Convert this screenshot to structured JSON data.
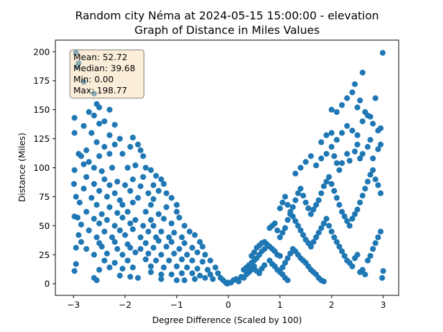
{
  "chart_data": {
    "type": "scatter",
    "title": "Random city Néma at 2024-05-15 15:00:00  - elevation",
    "subtitle": "Graph of Distance in Miles Values",
    "xlabel": "Degree Difference (Scaled by 100)",
    "ylabel": "Distance (Miles)",
    "xlim": [
      -3.35,
      3.3
    ],
    "ylim": [
      -10,
      210
    ],
    "xticks": [
      "−3",
      "−2",
      "−1",
      "0",
      "1",
      "2",
      "3"
    ],
    "xtick_values": [
      -3,
      -2,
      -1,
      0,
      1,
      2,
      3
    ],
    "yticks": [
      "0",
      "25",
      "50",
      "75",
      "100",
      "125",
      "150",
      "175",
      "200"
    ],
    "ytick_values": [
      0,
      25,
      50,
      75,
      100,
      125,
      150,
      175,
      200
    ],
    "grid": false,
    "marker_color": "#1f77b4",
    "stats_box": {
      "mean": "Mean: 52.72",
      "median": "Median: 39.68",
      "min": "Min: 0.00",
      "max": "Max: 198.77",
      "background": "#f5deb3",
      "placement": "top-left"
    },
    "points": [
      [
        -2.95,
        199
      ],
      [
        -2.9,
        190
      ],
      [
        -2.93,
        187
      ],
      [
        -2.8,
        174
      ],
      [
        -2.6,
        164
      ],
      [
        -2.55,
        155
      ],
      [
        -2.5,
        152
      ],
      [
        -2.3,
        150
      ],
      [
        -2.7,
        148
      ],
      [
        -2.6,
        145
      ],
      [
        -2.98,
        143
      ],
      [
        -2.4,
        140
      ],
      [
        -2.5,
        138
      ],
      [
        -2.8,
        136
      ],
      [
        -2.2,
        137
      ],
      [
        -2.98,
        130
      ],
      [
        -2.65,
        130
      ],
      [
        -2.3,
        128
      ],
      [
        -2.1,
        125
      ],
      [
        -1.85,
        126
      ],
      [
        -2.55,
        122
      ],
      [
        -2.4,
        118
      ],
      [
        -2.2,
        120
      ],
      [
        -1.9,
        118
      ],
      [
        -1.75,
        120
      ],
      [
        -1.7,
        115
      ],
      [
        -2.9,
        112
      ],
      [
        -2.75,
        115
      ],
      [
        -2.85,
        110
      ],
      [
        -2.5,
        110
      ],
      [
        -2.3,
        112
      ],
      [
        -2.05,
        112
      ],
      [
        -1.65,
        110
      ],
      [
        -2.7,
        105
      ],
      [
        -2.8,
        103
      ],
      [
        -2.6,
        100
      ],
      [
        -2.98,
        98
      ],
      [
        -2.45,
        97
      ],
      [
        -2.25,
        100
      ],
      [
        -1.95,
        100
      ],
      [
        -1.8,
        102
      ],
      [
        -1.6,
        100
      ],
      [
        -1.5,
        98
      ],
      [
        -2.75,
        92
      ],
      [
        -2.4,
        90
      ],
      [
        -2.15,
        88
      ],
      [
        -1.85,
        90
      ],
      [
        -1.65,
        92
      ],
      [
        -1.4,
        93
      ],
      [
        -1.3,
        90
      ],
      [
        -2.99,
        86
      ],
      [
        -2.6,
        86
      ],
      [
        -2.3,
        85
      ],
      [
        -2.0,
        85
      ],
      [
        -1.7,
        84
      ],
      [
        -1.45,
        85
      ],
      [
        -1.25,
        86
      ],
      [
        -2.8,
        82
      ],
      [
        -2.5,
        80
      ],
      [
        -2.2,
        78
      ],
      [
        -1.9,
        80
      ],
      [
        -1.55,
        78
      ],
      [
        -1.35,
        80
      ],
      [
        -1.2,
        78
      ],
      [
        -2.95,
        75
      ],
      [
        -2.65,
        74
      ],
      [
        -2.35,
        75
      ],
      [
        -2.1,
        72
      ],
      [
        -1.75,
        74
      ],
      [
        -1.45,
        73
      ],
      [
        -1.1,
        74
      ],
      [
        -2.88,
        70
      ],
      [
        -2.55,
        68
      ],
      [
        -2.3,
        66
      ],
      [
        -2.05,
        68
      ],
      [
        -1.85,
        70
      ],
      [
        -1.5,
        68
      ],
      [
        -1.2,
        66
      ],
      [
        -1.0,
        68
      ],
      [
        -2.75,
        62
      ],
      [
        -2.45,
        60
      ],
      [
        -2.15,
        61
      ],
      [
        -1.95,
        62
      ],
      [
        -1.6,
        62
      ],
      [
        -1.35,
        60
      ],
      [
        -1.0,
        62
      ],
      [
        -2.98,
        58
      ],
      [
        -2.92,
        57
      ],
      [
        -2.6,
        56
      ],
      [
        -2.35,
        55
      ],
      [
        -2.05,
        57
      ],
      [
        -1.8,
        55
      ],
      [
        -1.5,
        55
      ],
      [
        -1.25,
        56
      ],
      [
        -0.95,
        57
      ],
      [
        -2.85,
        51
      ],
      [
        -2.5,
        52
      ],
      [
        -2.2,
        50
      ],
      [
        -1.9,
        52
      ],
      [
        -1.65,
        50
      ],
      [
        -1.45,
        50
      ],
      [
        -1.1,
        52
      ],
      [
        -0.85,
        50
      ],
      [
        -2.7,
        46
      ],
      [
        -2.4,
        45
      ],
      [
        -2.1,
        46
      ],
      [
        -1.85,
        47
      ],
      [
        -1.55,
        45
      ],
      [
        -1.3,
        45
      ],
      [
        -1.05,
        44
      ],
      [
        -0.75,
        45
      ],
      [
        -2.9,
        42
      ],
      [
        -2.55,
        40
      ],
      [
        -2.25,
        40
      ],
      [
        -2.0,
        42
      ],
      [
        -1.7,
        40
      ],
      [
        -1.4,
        40
      ],
      [
        -1.15,
        40
      ],
      [
        -0.9,
        40
      ],
      [
        -0.65,
        42
      ],
      [
        -2.85,
        36
      ],
      [
        -2.5,
        35
      ],
      [
        -2.2,
        36
      ],
      [
        -1.95,
        34
      ],
      [
        -1.6,
        35
      ],
      [
        -1.35,
        37
      ],
      [
        -1.1,
        36
      ],
      [
        -0.85,
        35
      ],
      [
        -0.55,
        36
      ],
      [
        -2.95,
        31
      ],
      [
        -2.75,
        30
      ],
      [
        -2.45,
        32
      ],
      [
        -2.15,
        30
      ],
      [
        -1.9,
        31
      ],
      [
        -1.7,
        30
      ],
      [
        -1.45,
        31
      ],
      [
        -1.2,
        32
      ],
      [
        -0.95,
        30
      ],
      [
        -0.7,
        31
      ],
      [
        -0.5,
        32
      ],
      [
        -2.6,
        25
      ],
      [
        -2.35,
        26
      ],
      [
        -2.05,
        25
      ],
      [
        -1.8,
        27
      ],
      [
        -1.55,
        26
      ],
      [
        -1.3,
        25
      ],
      [
        -1.05,
        26
      ],
      [
        -0.8,
        25
      ],
      [
        -0.6,
        27
      ],
      [
        -0.45,
        25
      ],
      [
        -2.95,
        17
      ],
      [
        -2.4,
        20
      ],
      [
        -2.2,
        18
      ],
      [
        -1.95,
        20
      ],
      [
        -1.6,
        21
      ],
      [
        -1.4,
        20
      ],
      [
        -1.15,
        20
      ],
      [
        -0.9,
        21
      ],
      [
        -0.7,
        20
      ],
      [
        -0.5,
        19
      ],
      [
        -0.35,
        20
      ],
      [
        -2.98,
        11
      ],
      [
        -2.5,
        12
      ],
      [
        -2.3,
        14
      ],
      [
        -2.05,
        13
      ],
      [
        -1.85,
        14
      ],
      [
        -1.5,
        15
      ],
      [
        -1.25,
        14
      ],
      [
        -1.0,
        15
      ],
      [
        -0.8,
        14
      ],
      [
        -0.6,
        13
      ],
      [
        -0.4,
        12
      ],
      [
        -0.25,
        14
      ],
      [
        -2.6,
        5
      ],
      [
        -2.55,
        3
      ],
      [
        -2.1,
        7
      ],
      [
        -1.9,
        6
      ],
      [
        -1.75,
        5
      ],
      [
        -1.5,
        10
      ],
      [
        -1.3,
        8
      ],
      [
        -1.1,
        8
      ],
      [
        -0.9,
        9
      ],
      [
        -0.7,
        9
      ],
      [
        -0.55,
        7
      ],
      [
        -0.35,
        8
      ],
      [
        -0.2,
        9
      ],
      [
        -1.3,
        4
      ],
      [
        -1.0,
        3
      ],
      [
        -0.85,
        3
      ],
      [
        -0.65,
        4
      ],
      [
        -0.45,
        5
      ],
      [
        -0.3,
        4
      ],
      [
        -0.15,
        5
      ],
      [
        -0.1,
        3
      ],
      [
        -0.05,
        1
      ],
      [
        -0.02,
        0
      ],
      [
        0.0,
        1
      ],
      [
        0.05,
        1
      ],
      [
        0.1,
        3
      ],
      [
        0.15,
        4
      ],
      [
        0.2,
        2
      ],
      [
        0.25,
        6
      ],
      [
        0.3,
        5
      ],
      [
        0.35,
        8
      ],
      [
        0.4,
        10
      ],
      [
        0.45,
        12
      ],
      [
        0.5,
        15
      ],
      [
        0.55,
        11
      ],
      [
        0.6,
        9
      ],
      [
        0.65,
        13
      ],
      [
        0.7,
        16
      ],
      [
        0.3,
        12
      ],
      [
        0.35,
        14
      ],
      [
        0.45,
        18
      ],
      [
        0.5,
        20
      ],
      [
        0.55,
        22
      ],
      [
        0.6,
        25
      ],
      [
        0.65,
        28
      ],
      [
        0.7,
        30
      ],
      [
        0.45,
        24
      ],
      [
        0.4,
        16
      ],
      [
        0.5,
        27
      ],
      [
        0.55,
        31
      ],
      [
        0.6,
        33
      ],
      [
        0.65,
        35
      ],
      [
        0.7,
        36
      ],
      [
        0.75,
        34
      ],
      [
        0.8,
        32
      ],
      [
        0.85,
        30
      ],
      [
        0.9,
        28
      ],
      [
        0.95,
        25
      ],
      [
        1.0,
        24
      ],
      [
        0.8,
        20
      ],
      [
        0.85,
        17
      ],
      [
        0.9,
        15
      ],
      [
        0.95,
        12
      ],
      [
        1.0,
        10
      ],
      [
        1.05,
        8
      ],
      [
        1.1,
        5
      ],
      [
        1.15,
        3
      ],
      [
        1.05,
        14
      ],
      [
        1.1,
        18
      ],
      [
        1.15,
        22
      ],
      [
        1.2,
        26
      ],
      [
        1.25,
        30
      ],
      [
        1.3,
        28
      ],
      [
        1.35,
        25
      ],
      [
        1.4,
        22
      ],
      [
        1.45,
        20
      ],
      [
        1.5,
        18
      ],
      [
        1.55,
        15
      ],
      [
        1.6,
        12
      ],
      [
        1.65,
        10
      ],
      [
        1.7,
        8
      ],
      [
        1.75,
        5
      ],
      [
        1.8,
        3
      ],
      [
        1.85,
        2
      ],
      [
        0.8,
        48
      ],
      [
        0.85,
        50
      ],
      [
        0.9,
        52
      ],
      [
        0.95,
        46
      ],
      [
        1.0,
        40
      ],
      [
        1.05,
        44
      ],
      [
        1.1,
        48
      ],
      [
        1.15,
        55
      ],
      [
        1.2,
        60
      ],
      [
        1.25,
        58
      ],
      [
        1.3,
        54
      ],
      [
        1.35,
        50
      ],
      [
        1.4,
        46
      ],
      [
        1.45,
        42
      ],
      [
        1.5,
        38
      ],
      [
        1.55,
        35
      ],
      [
        1.6,
        32
      ],
      [
        1.65,
        36
      ],
      [
        1.7,
        40
      ],
      [
        1.75,
        44
      ],
      [
        1.8,
        48
      ],
      [
        1.85,
        52
      ],
      [
        1.9,
        56
      ],
      [
        1.95,
        50
      ],
      [
        2.0,
        45
      ],
      [
        2.05,
        40
      ],
      [
        2.1,
        36
      ],
      [
        2.15,
        32
      ],
      [
        2.2,
        28
      ],
      [
        2.25,
        24
      ],
      [
        2.3,
        20
      ],
      [
        2.35,
        18
      ],
      [
        2.4,
        15
      ],
      [
        2.45,
        22
      ],
      [
        2.5,
        25
      ],
      [
        2.55,
        10
      ],
      [
        2.6,
        12
      ],
      [
        2.65,
        8
      ],
      [
        2.7,
        20
      ],
      [
        2.75,
        24
      ],
      [
        2.8,
        30
      ],
      [
        2.85,
        35
      ],
      [
        2.9,
        40
      ],
      [
        2.95,
        45
      ],
      [
        3.0,
        11
      ],
      [
        2.98,
        5
      ],
      [
        1.0,
        65
      ],
      [
        1.05,
        70
      ],
      [
        1.1,
        75
      ],
      [
        1.15,
        68
      ],
      [
        1.2,
        62
      ],
      [
        1.25,
        66
      ],
      [
        1.3,
        72
      ],
      [
        1.35,
        78
      ],
      [
        1.4,
        82
      ],
      [
        1.45,
        76
      ],
      [
        1.5,
        70
      ],
      [
        1.55,
        65
      ],
      [
        1.6,
        60
      ],
      [
        1.65,
        64
      ],
      [
        1.7,
        68
      ],
      [
        1.75,
        72
      ],
      [
        1.8,
        78
      ],
      [
        1.85,
        84
      ],
      [
        1.9,
        88
      ],
      [
        1.95,
        92
      ],
      [
        2.0,
        86
      ],
      [
        2.05,
        80
      ],
      [
        2.1,
        74
      ],
      [
        2.15,
        68
      ],
      [
        2.2,
        62
      ],
      [
        2.25,
        58
      ],
      [
        2.3,
        54
      ],
      [
        2.35,
        50
      ],
      [
        2.4,
        56
      ],
      [
        2.45,
        60
      ],
      [
        2.5,
        64
      ],
      [
        2.55,
        70
      ],
      [
        2.6,
        76
      ],
      [
        2.65,
        82
      ],
      [
        2.7,
        88
      ],
      [
        2.75,
        94
      ],
      [
        2.8,
        98
      ],
      [
        2.85,
        90
      ],
      [
        2.9,
        85
      ],
      [
        2.95,
        78
      ],
      [
        1.3,
        95
      ],
      [
        1.4,
        100
      ],
      [
        1.5,
        105
      ],
      [
        1.6,
        110
      ],
      [
        1.7,
        102
      ],
      [
        1.8,
        108
      ],
      [
        1.9,
        112
      ],
      [
        2.0,
        118
      ],
      [
        2.05,
        110
      ],
      [
        2.1,
        104
      ],
      [
        2.15,
        98
      ],
      [
        2.2,
        104
      ],
      [
        2.3,
        112
      ],
      [
        2.35,
        106
      ],
      [
        2.45,
        114
      ],
      [
        2.5,
        120
      ],
      [
        2.55,
        108
      ],
      [
        2.6,
        112
      ],
      [
        2.7,
        118
      ],
      [
        2.75,
        124
      ],
      [
        2.8,
        108
      ],
      [
        2.9,
        116
      ],
      [
        2.95,
        120
      ],
      [
        1.8,
        122
      ],
      [
        1.9,
        128
      ],
      [
        2.0,
        130
      ],
      [
        2.1,
        124
      ],
      [
        2.2,
        130
      ],
      [
        2.3,
        136
      ],
      [
        2.4,
        132
      ],
      [
        2.5,
        128
      ],
      [
        2.6,
        140
      ],
      [
        2.7,
        145
      ],
      [
        2.8,
        138
      ],
      [
        2.9,
        132
      ],
      [
        2.95,
        134
      ],
      [
        2.0,
        150
      ],
      [
        2.1,
        148
      ],
      [
        2.2,
        154
      ],
      [
        2.3,
        160
      ],
      [
        2.4,
        165
      ],
      [
        2.5,
        152
      ],
      [
        2.55,
        158
      ],
      [
        2.65,
        148
      ],
      [
        2.75,
        144
      ],
      [
        2.85,
        160
      ],
      [
        2.45,
        172
      ],
      [
        2.6,
        182
      ],
      [
        2.99,
        199
      ]
    ]
  }
}
